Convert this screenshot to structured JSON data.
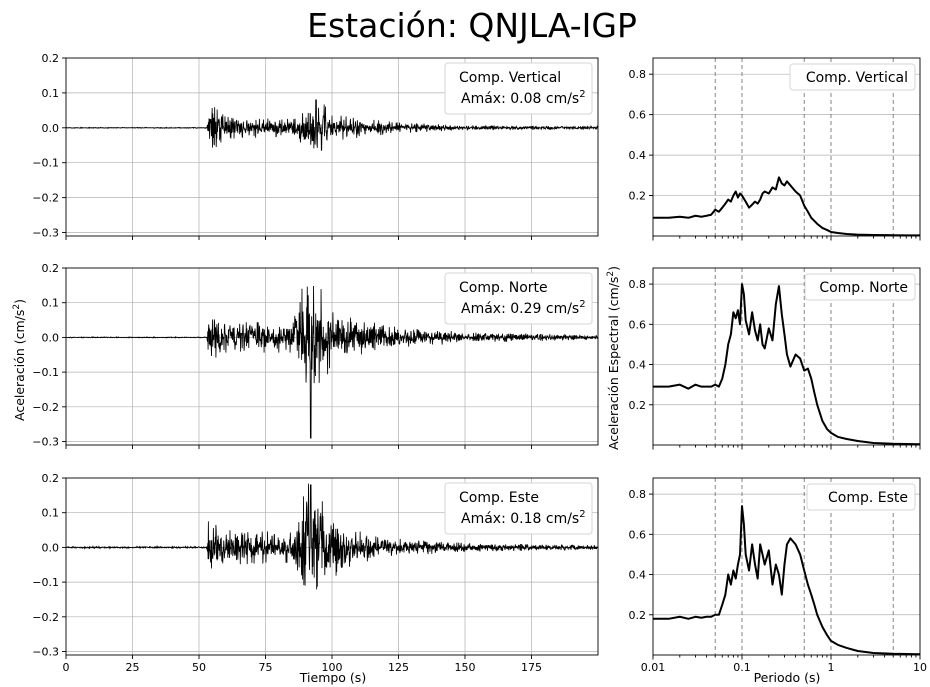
{
  "title": "Estación: QNJLA-IGP",
  "colors": {
    "trace": "#000000",
    "grid": "#b0b0b0",
    "background": "#ffffff"
  },
  "chart_data": [
    {
      "id": "vertical-time",
      "type": "line",
      "legend": [
        "Comp. Vertical",
        "Amáx: 0.08 cm/s"
      ],
      "legend_placement": "top-right",
      "grid": true,
      "xlim": [
        0,
        200
      ],
      "ylim": [
        -0.31,
        0.2
      ],
      "xticks": [
        0,
        25,
        50,
        75,
        100,
        125,
        150,
        175
      ],
      "yticks": [
        -0.3,
        -0.2,
        -0.1,
        0.0,
        0.1,
        0.2
      ],
      "yticklabels": [
        "−0.3",
        "−0.2",
        "−0.1",
        "0.0",
        "0.1",
        "0.2"
      ],
      "onset_s": 53.5,
      "peak": {
        "time": 94,
        "value": 0.08
      },
      "envelope": {
        "t": [
          0,
          53,
          53.5,
          60,
          85,
          90,
          95,
          100,
          125,
          150,
          200
        ],
        "a": [
          0.001,
          0.001,
          0.06,
          0.025,
          0.02,
          0.045,
          0.07,
          0.03,
          0.012,
          0.006,
          0.003
        ]
      }
    },
    {
      "id": "norte-time",
      "type": "line",
      "legend": [
        "Comp. Norte",
        "Amáx: 0.29 cm/s"
      ],
      "legend_placement": "top-right",
      "grid": true,
      "xlim": [
        0,
        200
      ],
      "ylim": [
        -0.31,
        0.2
      ],
      "xticks": [
        0,
        25,
        50,
        75,
        100,
        125,
        150,
        175
      ],
      "yticks": [
        -0.3,
        -0.2,
        -0.1,
        0.0,
        0.1,
        0.2
      ],
      "yticklabels": [
        "−0.3",
        "−0.2",
        "−0.1",
        "0.0",
        "0.1",
        "0.2"
      ],
      "onset_s": 53.5,
      "peak": {
        "time": 92,
        "value": -0.29
      },
      "envelope": {
        "t": [
          0,
          53,
          53.5,
          60,
          85,
          91,
          95,
          100,
          110,
          125,
          150,
          200
        ],
        "a": [
          0.001,
          0.001,
          0.08,
          0.035,
          0.035,
          0.16,
          0.12,
          0.07,
          0.04,
          0.025,
          0.012,
          0.005
        ]
      }
    },
    {
      "id": "este-time",
      "type": "line",
      "legend": [
        "Comp. Este",
        "Amáx: 0.18 cm/s"
      ],
      "legend_placement": "top-right",
      "grid": true,
      "xlabel": "Tiempo (s)",
      "xlim": [
        0,
        200
      ],
      "ylim": [
        -0.31,
        0.2
      ],
      "xticks": [
        0,
        25,
        50,
        75,
        100,
        125,
        150,
        175
      ],
      "yticks": [
        -0.3,
        -0.2,
        -0.1,
        0.0,
        0.1,
        0.2
      ],
      "yticklabels": [
        "−0.3",
        "−0.2",
        "−0.1",
        "0.0",
        "0.1",
        "0.2"
      ],
      "onset_s": 53.5,
      "peak": {
        "time": 92,
        "value": 0.18
      },
      "envelope": {
        "t": [
          0,
          53,
          53.5,
          60,
          85,
          91,
          95,
          100,
          110,
          125,
          150,
          200
        ],
        "a": [
          0.002,
          0.002,
          0.07,
          0.04,
          0.035,
          0.16,
          0.12,
          0.07,
          0.04,
          0.02,
          0.01,
          0.005
        ]
      }
    },
    {
      "id": "vertical-spectrum",
      "type": "line",
      "xscale": "log",
      "legend": [
        "Comp. Vertical"
      ],
      "legend_placement": "top-right",
      "grid": true,
      "xlim": [
        0.01,
        10
      ],
      "ylim": [
        0,
        0.88
      ],
      "yticks": [
        0.2,
        0.4,
        0.6,
        0.8
      ],
      "yticklabels": [
        "0.2",
        "0.4",
        "0.6",
        "0.8"
      ],
      "vlines": [
        0.05,
        0.1,
        0.5,
        1,
        5
      ],
      "x": [
        0.01,
        0.015,
        0.02,
        0.025,
        0.03,
        0.035,
        0.04,
        0.045,
        0.05,
        0.055,
        0.06,
        0.065,
        0.07,
        0.075,
        0.08,
        0.085,
        0.09,
        0.095,
        0.1,
        0.11,
        0.12,
        0.13,
        0.14,
        0.15,
        0.16,
        0.17,
        0.18,
        0.2,
        0.22,
        0.24,
        0.26,
        0.28,
        0.3,
        0.32,
        0.35,
        0.4,
        0.45,
        0.5,
        0.55,
        0.6,
        0.7,
        0.8,
        0.9,
        1.0,
        1.2,
        1.5,
        2,
        3,
        5,
        7,
        10
      ],
      "y": [
        0.09,
        0.09,
        0.095,
        0.09,
        0.1,
        0.095,
        0.1,
        0.105,
        0.13,
        0.12,
        0.14,
        0.16,
        0.18,
        0.17,
        0.2,
        0.22,
        0.19,
        0.21,
        0.2,
        0.17,
        0.14,
        0.155,
        0.17,
        0.16,
        0.18,
        0.21,
        0.22,
        0.21,
        0.24,
        0.23,
        0.29,
        0.26,
        0.25,
        0.27,
        0.25,
        0.22,
        0.2,
        0.15,
        0.12,
        0.09,
        0.06,
        0.04,
        0.03,
        0.02,
        0.015,
        0.01,
        0.007,
        0.005,
        0.004,
        0.003,
        0.003
      ]
    },
    {
      "id": "norte-spectrum",
      "type": "line",
      "xscale": "log",
      "legend": [
        "Comp. Norte"
      ],
      "legend_placement": "top-right",
      "grid": true,
      "ylabel": "Aceleración Espectral (cm/s",
      "xlim": [
        0.01,
        10
      ],
      "ylim": [
        0,
        0.88
      ],
      "yticks": [
        0.2,
        0.4,
        0.6,
        0.8
      ],
      "yticklabels": [
        "0.2",
        "0.4",
        "0.6",
        "0.8"
      ],
      "vlines": [
        0.05,
        0.1,
        0.5,
        1,
        5
      ],
      "x": [
        0.01,
        0.015,
        0.02,
        0.025,
        0.03,
        0.035,
        0.04,
        0.045,
        0.05,
        0.055,
        0.06,
        0.065,
        0.07,
        0.075,
        0.08,
        0.085,
        0.09,
        0.095,
        0.1,
        0.105,
        0.11,
        0.12,
        0.13,
        0.14,
        0.15,
        0.16,
        0.17,
        0.18,
        0.2,
        0.22,
        0.24,
        0.26,
        0.28,
        0.3,
        0.32,
        0.35,
        0.4,
        0.45,
        0.5,
        0.55,
        0.6,
        0.65,
        0.7,
        0.8,
        0.9,
        1.0,
        1.2,
        1.5,
        2,
        3,
        5,
        7,
        10
      ],
      "y": [
        0.29,
        0.29,
        0.3,
        0.28,
        0.3,
        0.29,
        0.29,
        0.29,
        0.3,
        0.29,
        0.33,
        0.4,
        0.5,
        0.55,
        0.66,
        0.63,
        0.67,
        0.6,
        0.8,
        0.75,
        0.62,
        0.55,
        0.66,
        0.57,
        0.52,
        0.6,
        0.5,
        0.48,
        0.58,
        0.52,
        0.7,
        0.79,
        0.65,
        0.55,
        0.45,
        0.39,
        0.45,
        0.43,
        0.37,
        0.38,
        0.33,
        0.26,
        0.2,
        0.12,
        0.08,
        0.06,
        0.04,
        0.03,
        0.02,
        0.01,
        0.006,
        0.005,
        0.004
      ]
    },
    {
      "id": "este-spectrum",
      "type": "line",
      "xscale": "log",
      "legend": [
        "Comp. Este"
      ],
      "legend_placement": "top-right",
      "grid": true,
      "xlabel": "Periodo (s)",
      "xlim": [
        0.01,
        10
      ],
      "ylim": [
        0,
        0.88
      ],
      "xticks": [
        0.01,
        0.1,
        1,
        10
      ],
      "xticklabels": [
        "0.01",
        "0.1",
        "1",
        "10"
      ],
      "yticks": [
        0.2,
        0.4,
        0.6,
        0.8
      ],
      "yticklabels": [
        "0.2",
        "0.4",
        "0.6",
        "0.8"
      ],
      "vlines": [
        0.05,
        0.1,
        0.5,
        1,
        5
      ],
      "x": [
        0.01,
        0.015,
        0.02,
        0.025,
        0.03,
        0.035,
        0.04,
        0.045,
        0.05,
        0.055,
        0.06,
        0.065,
        0.07,
        0.075,
        0.08,
        0.085,
        0.09,
        0.095,
        0.1,
        0.105,
        0.11,
        0.12,
        0.13,
        0.14,
        0.15,
        0.16,
        0.17,
        0.18,
        0.2,
        0.22,
        0.24,
        0.26,
        0.28,
        0.3,
        0.32,
        0.35,
        0.4,
        0.45,
        0.5,
        0.55,
        0.6,
        0.65,
        0.7,
        0.8,
        0.9,
        1.0,
        1.2,
        1.5,
        2,
        3,
        5,
        7,
        10
      ],
      "y": [
        0.18,
        0.18,
        0.19,
        0.18,
        0.19,
        0.185,
        0.19,
        0.19,
        0.2,
        0.2,
        0.25,
        0.3,
        0.4,
        0.35,
        0.42,
        0.38,
        0.45,
        0.5,
        0.74,
        0.65,
        0.5,
        0.42,
        0.55,
        0.45,
        0.38,
        0.55,
        0.5,
        0.45,
        0.52,
        0.35,
        0.45,
        0.4,
        0.3,
        0.45,
        0.55,
        0.58,
        0.55,
        0.5,
        0.42,
        0.35,
        0.3,
        0.25,
        0.2,
        0.14,
        0.1,
        0.07,
        0.05,
        0.035,
        0.02,
        0.01,
        0.006,
        0.005,
        0.004
      ]
    }
  ],
  "labels": {
    "time_ylabel": "Aceleración (cm/s",
    "superscript": "2",
    "closing_paren": ")"
  }
}
